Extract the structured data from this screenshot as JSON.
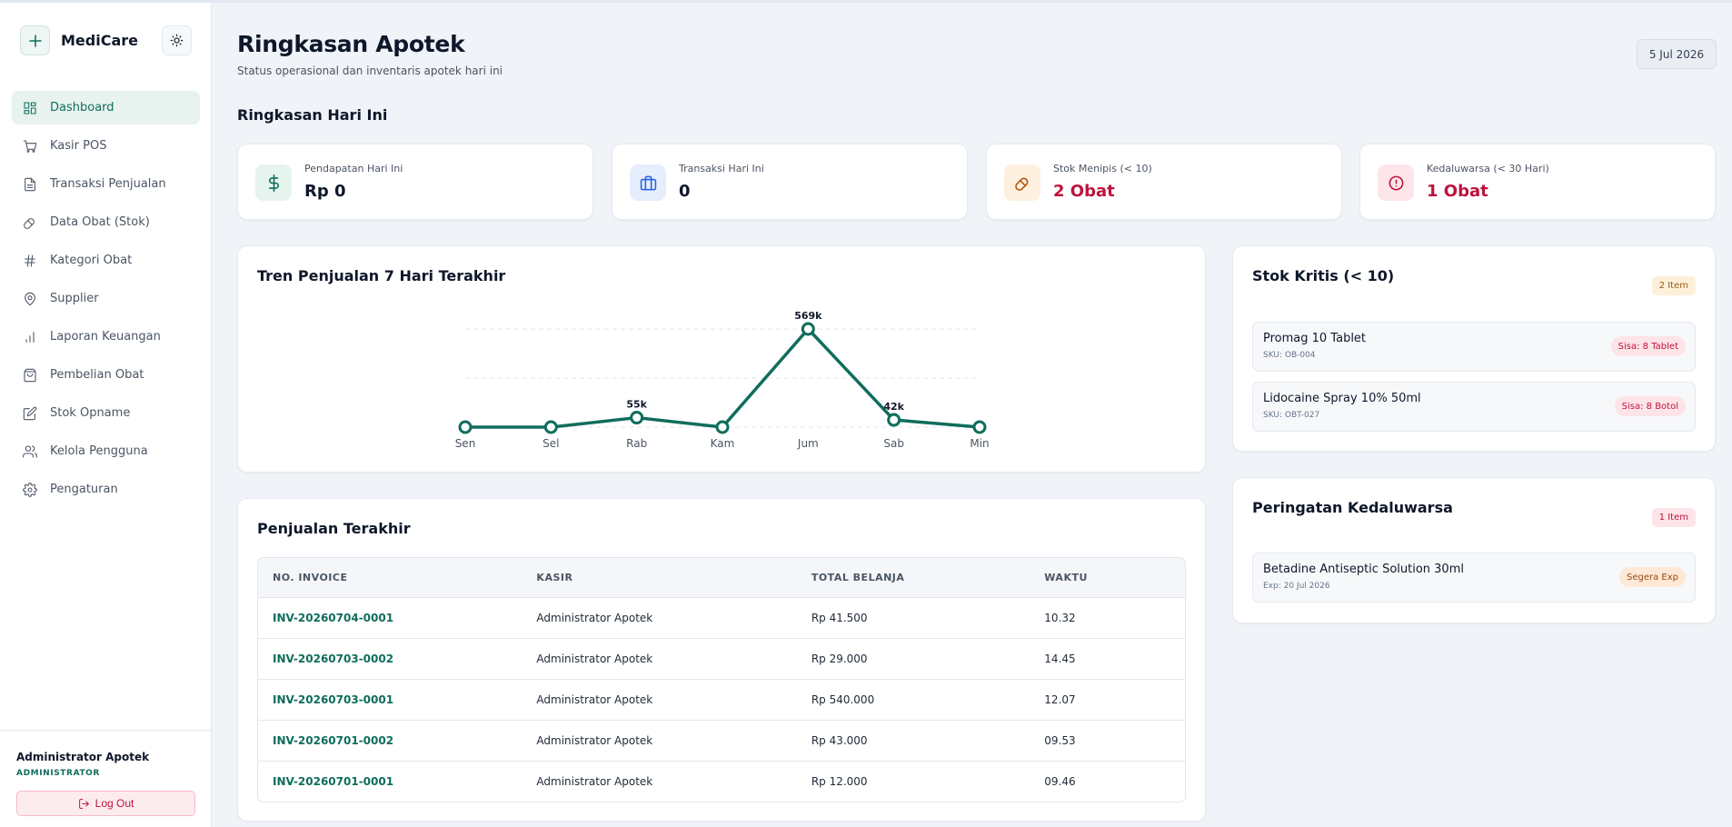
{
  "brand": {
    "name": "MediCare",
    "logo_icon": "plus-icon",
    "theme_icon": "sun-icon"
  },
  "sidebar": {
    "items": [
      {
        "label": "Dashboard",
        "icon": "dashboard-icon",
        "active": true
      },
      {
        "label": "Kasir POS",
        "icon": "cart-icon"
      },
      {
        "label": "Transaksi Penjualan",
        "icon": "document-icon"
      },
      {
        "label": "Data Obat (Stok)",
        "icon": "pill-icon"
      },
      {
        "label": "Kategori Obat",
        "icon": "hash-icon"
      },
      {
        "label": "Supplier",
        "icon": "map-pin-icon"
      },
      {
        "label": "Laporan Keuangan",
        "icon": "bar-chart-icon"
      },
      {
        "label": "Pembelian Obat",
        "icon": "shopping-bag-icon"
      },
      {
        "label": "Stok Opname",
        "icon": "edit-icon"
      },
      {
        "label": "Kelola Pengguna",
        "icon": "users-icon"
      },
      {
        "label": "Pengaturan",
        "icon": "settings-icon"
      }
    ],
    "user": {
      "name": "Administrator Apotek",
      "role": "ADMINISTRATOR"
    },
    "logout_label": "Log Out"
  },
  "header": {
    "title": "Ringkasan Apotek",
    "subtitle": "Status operasional dan inventaris apotek hari ini",
    "date": "5 Jul 2026"
  },
  "summary": {
    "title": "Ringkasan Hari Ini",
    "stats": [
      {
        "label": "Pendapatan Hari Ini",
        "value": "Rp 0",
        "icon": "dollar-icon",
        "color": "#0f6d5c"
      },
      {
        "label": "Transaksi Hari Ini",
        "value": "0",
        "icon": "briefcase-icon",
        "color": "#2563eb"
      },
      {
        "label": "Stok Menipis (< 10)",
        "value": "2 Obat",
        "icon": "pill-icon",
        "color": "#b45309"
      },
      {
        "label": "Kedaluwarsa (< 30 Hari)",
        "value": "1 Obat",
        "icon": "alert-circle-icon",
        "color": "#be123c"
      }
    ]
  },
  "trend": {
    "title": "Tren Penjualan 7 Hari Terakhir",
    "chart_data": {
      "type": "line",
      "categories": [
        "Sen",
        "Sel",
        "Rab",
        "Kam",
        "Jum",
        "Sab",
        "Min"
      ],
      "values": [
        0,
        0,
        55000,
        0,
        569000,
        42000,
        0
      ],
      "data_labels": [
        "",
        "",
        "55k",
        "",
        "569k",
        "42k",
        ""
      ],
      "ylim": [
        0,
        569000
      ],
      "grid": "horizontal dashed",
      "color": "#0f6d5c"
    }
  },
  "recent_sales": {
    "title": "Penjualan Terakhir",
    "columns": [
      "NO. INVOICE",
      "KASIR",
      "TOTAL BELANJA",
      "WAKTU"
    ],
    "rows": [
      [
        "INV-20260704-0001",
        "Administrator Apotek",
        "Rp 41.500",
        "10.32"
      ],
      [
        "INV-20260703-0002",
        "Administrator Apotek",
        "Rp 29.000",
        "14.45"
      ],
      [
        "INV-20260703-0001",
        "Administrator Apotek",
        "Rp 540.000",
        "12.07"
      ],
      [
        "INV-20260701-0002",
        "Administrator Apotek",
        "Rp 43.000",
        "09.53"
      ],
      [
        "INV-20260701-0001",
        "Administrator Apotek",
        "Rp 12.000",
        "09.46"
      ]
    ]
  },
  "critical_stock": {
    "title": "Stok Kritis (< 10)",
    "count_label": "2 Item",
    "items": [
      {
        "name": "Promag 10 Tablet",
        "sku": "SKU: OB-004",
        "badge": "Sisa: 8 Tablet"
      },
      {
        "name": "Lidocaine Spray 10% 50ml",
        "sku": "SKU: OBT-027",
        "badge": "Sisa: 8 Botol"
      }
    ]
  },
  "expiry": {
    "title": "Peringatan Kedaluwarsa",
    "count_label": "1 Item",
    "items": [
      {
        "name": "Betadine Antiseptic Solution 30ml",
        "exp": "Exp: 20 Jul 2026",
        "badge": "Segera Exp"
      }
    ]
  }
}
